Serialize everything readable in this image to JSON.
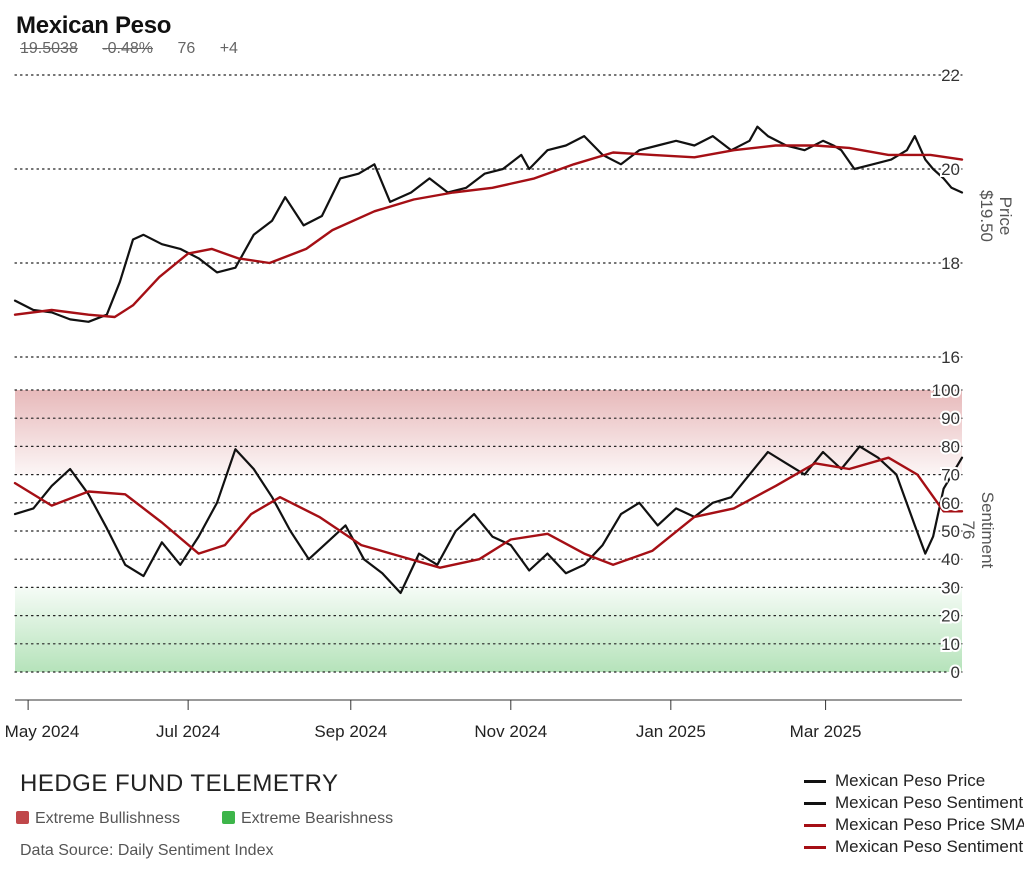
{
  "header": {
    "title": "Mexican Peso",
    "price": "19.5038",
    "change": "-0.48%",
    "sentiment": "76",
    "sentiment_change": "+4"
  },
  "branding": {
    "name": "HEDGE FUND TELEMETRY",
    "extreme_bullish": "Extreme Bullishness",
    "extreme_bearish": "Extreme Bearishness",
    "source": "Data Source: Daily Sentiment Index"
  },
  "colors": {
    "price_line": "#111111",
    "sma_line": "#a50f15",
    "bullish_zone": "#c0474a",
    "bearish_zone": "#3db54a"
  },
  "chart_data": [
    {
      "type": "line",
      "ylabel": "Price",
      "ylabel_value": "$19.50",
      "ylim": [
        16,
        22
      ],
      "yticks": [
        16,
        18,
        20,
        22
      ],
      "x_start": "2024-04-26",
      "x_end": "2025-04-22",
      "xticks": [
        {
          "date": "2024-05-01",
          "label": "May 2024"
        },
        {
          "date": "2024-07-01",
          "label": "Jul 2024"
        },
        {
          "date": "2024-09-01",
          "label": "Sep 2024"
        },
        {
          "date": "2024-11-01",
          "label": "Nov 2024"
        },
        {
          "date": "2025-01-01",
          "label": "Jan 2025"
        },
        {
          "date": "2025-03-01",
          "label": "Mar 2025"
        }
      ],
      "series": [
        {
          "name": "Mexican Peso Price",
          "color": "#111111",
          "points": [
            [
              "2024-04-26",
              17.2
            ],
            [
              "2024-05-03",
              17.0
            ],
            [
              "2024-05-10",
              16.95
            ],
            [
              "2024-05-17",
              16.8
            ],
            [
              "2024-05-24",
              16.75
            ],
            [
              "2024-05-31",
              16.9
            ],
            [
              "2024-06-05",
              17.6
            ],
            [
              "2024-06-10",
              18.5
            ],
            [
              "2024-06-14",
              18.6
            ],
            [
              "2024-06-21",
              18.4
            ],
            [
              "2024-06-28",
              18.3
            ],
            [
              "2024-07-05",
              18.1
            ],
            [
              "2024-07-12",
              17.8
            ],
            [
              "2024-07-19",
              17.9
            ],
            [
              "2024-07-26",
              18.6
            ],
            [
              "2024-08-02",
              18.9
            ],
            [
              "2024-08-07",
              19.4
            ],
            [
              "2024-08-14",
              18.8
            ],
            [
              "2024-08-21",
              19.0
            ],
            [
              "2024-08-28",
              19.8
            ],
            [
              "2024-09-04",
              19.9
            ],
            [
              "2024-09-10",
              20.1
            ],
            [
              "2024-09-16",
              19.3
            ],
            [
              "2024-09-24",
              19.5
            ],
            [
              "2024-10-01",
              19.8
            ],
            [
              "2024-10-08",
              19.5
            ],
            [
              "2024-10-15",
              19.6
            ],
            [
              "2024-10-22",
              19.9
            ],
            [
              "2024-10-29",
              20.0
            ],
            [
              "2024-11-05",
              20.3
            ],
            [
              "2024-11-08",
              20.0
            ],
            [
              "2024-11-15",
              20.4
            ],
            [
              "2024-11-22",
              20.5
            ],
            [
              "2024-11-29",
              20.7
            ],
            [
              "2024-12-06",
              20.3
            ],
            [
              "2024-12-13",
              20.1
            ],
            [
              "2024-12-20",
              20.4
            ],
            [
              "2024-12-27",
              20.5
            ],
            [
              "2025-01-03",
              20.6
            ],
            [
              "2025-01-10",
              20.5
            ],
            [
              "2025-01-17",
              20.7
            ],
            [
              "2025-01-24",
              20.4
            ],
            [
              "2025-01-31",
              20.6
            ],
            [
              "2025-02-03",
              20.9
            ],
            [
              "2025-02-07",
              20.7
            ],
            [
              "2025-02-14",
              20.5
            ],
            [
              "2025-02-21",
              20.4
            ],
            [
              "2025-02-28",
              20.6
            ],
            [
              "2025-03-04",
              20.5
            ],
            [
              "2025-03-07",
              20.4
            ],
            [
              "2025-03-12",
              20.0
            ],
            [
              "2025-03-19",
              20.1
            ],
            [
              "2025-03-26",
              20.2
            ],
            [
              "2025-04-01",
              20.4
            ],
            [
              "2025-04-04",
              20.7
            ],
            [
              "2025-04-08",
              20.2
            ],
            [
              "2025-04-11",
              20.0
            ],
            [
              "2025-04-15",
              19.8
            ],
            [
              "2025-04-18",
              19.6
            ],
            [
              "2025-04-22",
              19.5
            ]
          ]
        },
        {
          "name": "Mexican Peso Price SMA",
          "color": "#a50f15",
          "points": [
            [
              "2024-04-26",
              16.9
            ],
            [
              "2024-05-10",
              17.0
            ],
            [
              "2024-05-24",
              16.9
            ],
            [
              "2024-06-03",
              16.85
            ],
            [
              "2024-06-10",
              17.1
            ],
            [
              "2024-06-20",
              17.7
            ],
            [
              "2024-07-01",
              18.2
            ],
            [
              "2024-07-10",
              18.3
            ],
            [
              "2024-07-20",
              18.1
            ],
            [
              "2024-08-01",
              18.0
            ],
            [
              "2024-08-15",
              18.3
            ],
            [
              "2024-08-25",
              18.7
            ],
            [
              "2024-09-10",
              19.1
            ],
            [
              "2024-09-25",
              19.35
            ],
            [
              "2024-10-10",
              19.5
            ],
            [
              "2024-10-25",
              19.6
            ],
            [
              "2024-11-10",
              19.8
            ],
            [
              "2024-11-25",
              20.1
            ],
            [
              "2024-12-10",
              20.35
            ],
            [
              "2024-12-25",
              20.3
            ],
            [
              "2025-01-10",
              20.25
            ],
            [
              "2025-01-25",
              20.4
            ],
            [
              "2025-02-10",
              20.5
            ],
            [
              "2025-02-25",
              20.5
            ],
            [
              "2025-03-10",
              20.45
            ],
            [
              "2025-03-25",
              20.3
            ],
            [
              "2025-04-10",
              20.3
            ],
            [
              "2025-04-22",
              20.2
            ]
          ]
        }
      ]
    },
    {
      "type": "line",
      "ylabel": "Sentiment",
      "ylabel_value": "76",
      "ylim": [
        0,
        100
      ],
      "yticks": [
        0,
        10,
        20,
        30,
        40,
        50,
        60,
        70,
        80,
        90,
        100
      ],
      "x_start": "2024-04-26",
      "x_end": "2025-04-22",
      "zones": [
        {
          "name": "Extreme Bullishness",
          "from": 70,
          "to": 100,
          "color": "#c0474a"
        },
        {
          "name": "Extreme Bearishness",
          "from": 0,
          "to": 30,
          "color": "#3db54a"
        }
      ],
      "series": [
        {
          "name": "Mexican Peso Sentiment",
          "color": "#111111",
          "points": [
            [
              "2024-04-26",
              56
            ],
            [
              "2024-05-03",
              58
            ],
            [
              "2024-05-10",
              66
            ],
            [
              "2024-05-17",
              72
            ],
            [
              "2024-05-24",
              63
            ],
            [
              "2024-05-31",
              51
            ],
            [
              "2024-06-07",
              38
            ],
            [
              "2024-06-14",
              34
            ],
            [
              "2024-06-21",
              46
            ],
            [
              "2024-06-28",
              38
            ],
            [
              "2024-07-05",
              48
            ],
            [
              "2024-07-12",
              60
            ],
            [
              "2024-07-19",
              79
            ],
            [
              "2024-07-26",
              72
            ],
            [
              "2024-08-02",
              62
            ],
            [
              "2024-08-09",
              50
            ],
            [
              "2024-08-16",
              40
            ],
            [
              "2024-08-23",
              46
            ],
            [
              "2024-08-30",
              52
            ],
            [
              "2024-09-06",
              40
            ],
            [
              "2024-09-13",
              35
            ],
            [
              "2024-09-20",
              28
            ],
            [
              "2024-09-27",
              42
            ],
            [
              "2024-10-04",
              38
            ],
            [
              "2024-10-11",
              50
            ],
            [
              "2024-10-18",
              56
            ],
            [
              "2024-10-25",
              48
            ],
            [
              "2024-11-01",
              45
            ],
            [
              "2024-11-08",
              36
            ],
            [
              "2024-11-15",
              42
            ],
            [
              "2024-11-22",
              35
            ],
            [
              "2024-11-29",
              38
            ],
            [
              "2024-12-06",
              45
            ],
            [
              "2024-12-13",
              56
            ],
            [
              "2024-12-20",
              60
            ],
            [
              "2024-12-27",
              52
            ],
            [
              "2025-01-03",
              58
            ],
            [
              "2025-01-10",
              55
            ],
            [
              "2025-01-17",
              60
            ],
            [
              "2025-01-24",
              62
            ],
            [
              "2025-01-31",
              70
            ],
            [
              "2025-02-07",
              78
            ],
            [
              "2025-02-14",
              74
            ],
            [
              "2025-02-21",
              70
            ],
            [
              "2025-02-28",
              78
            ],
            [
              "2025-03-07",
              72
            ],
            [
              "2025-03-14",
              80
            ],
            [
              "2025-03-21",
              76
            ],
            [
              "2025-03-28",
              70
            ],
            [
              "2025-04-04",
              52
            ],
            [
              "2025-04-08",
              42
            ],
            [
              "2025-04-11",
              48
            ],
            [
              "2025-04-15",
              65
            ],
            [
              "2025-04-22",
              76
            ]
          ]
        },
        {
          "name": "Mexican Peso Sentiment SMA",
          "color": "#a50f15",
          "points": [
            [
              "2024-04-26",
              67
            ],
            [
              "2024-05-10",
              59
            ],
            [
              "2024-05-24",
              64
            ],
            [
              "2024-06-07",
              63
            ],
            [
              "2024-06-21",
              53
            ],
            [
              "2024-07-05",
              42
            ],
            [
              "2024-07-15",
              45
            ],
            [
              "2024-07-25",
              56
            ],
            [
              "2024-08-05",
              62
            ],
            [
              "2024-08-20",
              55
            ],
            [
              "2024-09-05",
              45
            ],
            [
              "2024-09-20",
              41
            ],
            [
              "2024-10-05",
              37
            ],
            [
              "2024-10-20",
              40
            ],
            [
              "2024-11-01",
              47
            ],
            [
              "2024-11-15",
              49
            ],
            [
              "2024-11-29",
              42
            ],
            [
              "2024-12-10",
              38
            ],
            [
              "2024-12-25",
              43
            ],
            [
              "2025-01-10",
              55
            ],
            [
              "2025-01-25",
              58
            ],
            [
              "2025-02-10",
              66
            ],
            [
              "2025-02-25",
              74
            ],
            [
              "2025-03-10",
              72
            ],
            [
              "2025-03-25",
              76
            ],
            [
              "2025-04-05",
              70
            ],
            [
              "2025-04-15",
              57
            ],
            [
              "2025-04-22",
              57
            ]
          ]
        }
      ]
    }
  ]
}
